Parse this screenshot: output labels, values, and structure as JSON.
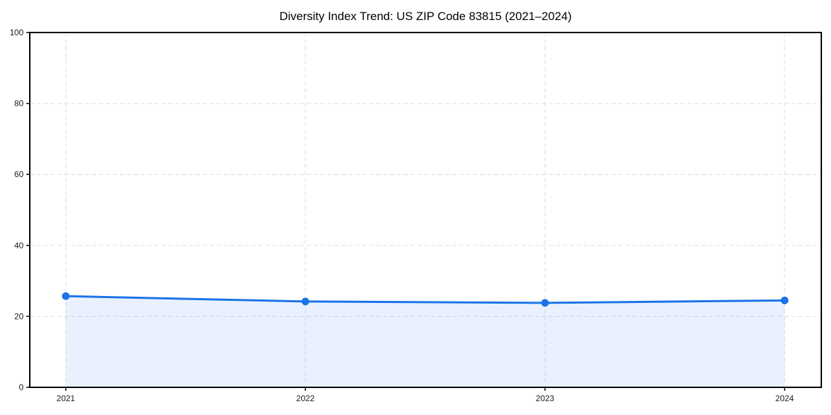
{
  "chart_data": {
    "type": "area",
    "title": "Diversity Index Trend: US ZIP Code 83815 (2021–2024)",
    "categories": [
      "2021",
      "2022",
      "2023",
      "2024"
    ],
    "series": [
      {
        "name": "Diversity Index",
        "values": [
          25.7,
          24.2,
          23.8,
          24.5
        ]
      }
    ],
    "xlabel": "",
    "ylabel": "",
    "ylim": [
      0,
      100
    ],
    "yticks": [
      0,
      20,
      40,
      60,
      80,
      100
    ],
    "grid": "dashed-both-axes",
    "legend": "none",
    "colors": {
      "line": "#1a73e8",
      "marker": "#1a73e8",
      "fill": "#1a73e8",
      "fill_opacity": 0.1,
      "gridline": "#dedede",
      "spine": "#000000",
      "tick_text": "#1a1a1a",
      "background": "#ffffff"
    }
  }
}
